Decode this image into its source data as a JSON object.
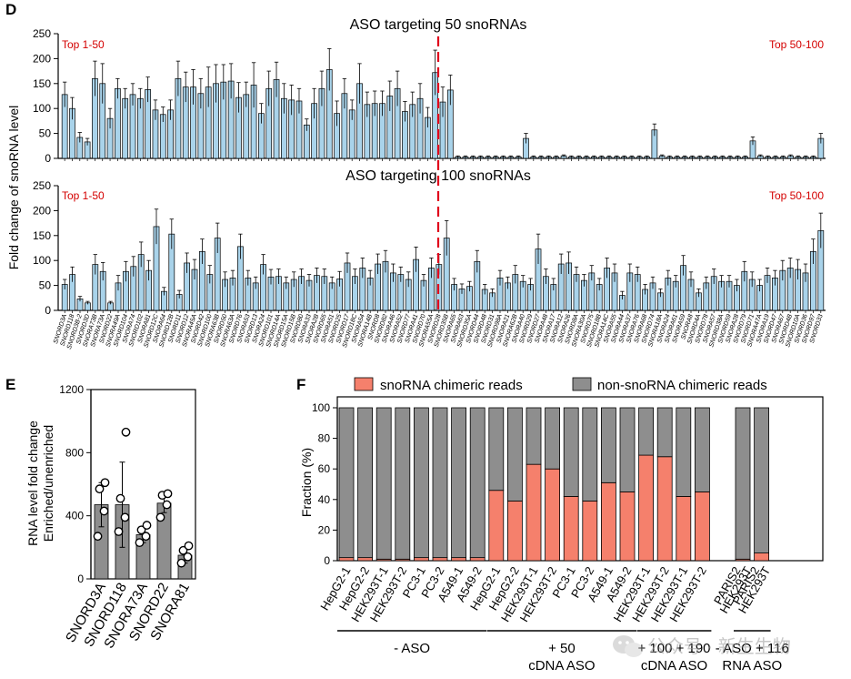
{
  "panels": {
    "D": {
      "letter": "D"
    },
    "E": {
      "letter": "E"
    },
    "F": {
      "letter": "F"
    }
  },
  "colors": {
    "bar_blue": "#a9d3ea",
    "bar_gray": "#8e8e8e",
    "salmon": "#f5806c",
    "dash_red": "#e0001b",
    "label_red": "#d40000",
    "axis": "#000000"
  },
  "watermark": {
    "text": "公众号 · 新生生物",
    "icon": "wechat-icon"
  },
  "chart_data": [
    {
      "id": "D-top",
      "type": "bar",
      "title": "ASO targeting 50 snoRNAs",
      "ylabel": "Fold change of snoRNA level",
      "ylim": [
        0,
        250
      ],
      "yticks": [
        0,
        50,
        100,
        150,
        200,
        250
      ],
      "annotations": [
        "Top 1-50",
        "Top 50-100"
      ],
      "values": [
        128,
        100,
        42,
        33,
        160,
        150,
        80,
        140,
        120,
        128,
        120,
        138,
        97,
        88,
        97,
        160,
        143,
        143,
        130,
        143,
        150,
        153,
        155,
        122,
        128,
        147,
        90,
        140,
        158,
        120,
        117,
        115,
        67,
        110,
        140,
        178,
        90,
        130,
        97,
        150,
        108,
        110,
        110,
        125,
        140,
        94,
        108,
        120,
        82,
        172,
        113,
        137,
        3,
        3,
        3,
        3,
        3,
        3,
        3,
        3,
        3,
        40,
        3,
        3,
        3,
        3,
        5,
        3,
        3,
        3,
        3,
        3,
        3,
        3,
        3,
        3,
        3,
        3,
        57,
        5,
        3,
        3,
        3,
        3,
        3,
        3,
        3,
        3,
        3,
        3,
        3,
        35,
        5,
        3,
        3,
        3,
        5,
        3,
        3,
        3,
        40
      ],
      "errors": [
        25,
        22,
        10,
        7,
        35,
        40,
        20,
        20,
        20,
        22,
        20,
        25,
        20,
        15,
        20,
        35,
        30,
        35,
        30,
        40,
        38,
        35,
        35,
        30,
        25,
        45,
        20,
        35,
        35,
        30,
        30,
        25,
        12,
        30,
        35,
        42,
        25,
        30,
        20,
        40,
        25,
        25,
        25,
        30,
        35,
        20,
        25,
        30,
        20,
        45,
        30,
        30,
        2,
        2,
        2,
        2,
        2,
        2,
        2,
        2,
        2,
        10,
        2,
        2,
        2,
        2,
        2,
        2,
        2,
        2,
        2,
        2,
        2,
        2,
        2,
        2,
        2,
        2,
        12,
        2,
        2,
        2,
        2,
        2,
        2,
        2,
        2,
        2,
        2,
        2,
        2,
        8,
        2,
        2,
        2,
        2,
        2,
        2,
        2,
        2,
        10
      ]
    },
    {
      "id": "D-bottom",
      "type": "bar",
      "title": "ASO targeting 100 snoRNAs",
      "ylim": [
        0,
        250
      ],
      "yticks": [
        0,
        50,
        100,
        150,
        200,
        250
      ],
      "annotations": [
        "Top 1-50",
        "Top 50-100"
      ],
      "categories": [
        "SNORD3A",
        "SNORD118",
        "SNORD3B-2",
        "SNORD3D",
        "SNORA73B",
        "SNORA73A",
        "SNORD22",
        "SNORA49A",
        "SNORD104",
        "SNORA74",
        "SNORD102",
        "SNORA81",
        "SNORD12C",
        "SNORA64",
        "SNORD12B",
        "SNORD11",
        "SNORD12",
        "SNORA45A",
        "SNORD42",
        "SNORD100",
        "SNORA63B",
        "SNORD50",
        "SNORA63A",
        "SNORD76",
        "SNORA53",
        "SNORD13",
        "SNORA24",
        "SNORD101",
        "SNORD14A",
        "SNORD15A",
        "SNORD15B",
        "SNORD80",
        "SNORA33",
        "SNORA2B",
        "SNORD65",
        "SNORA51",
        "SNORD25",
        "SNORD17",
        "SNORD18C",
        "SNORA54",
        "SNORA14B",
        "SNORD8",
        "SNORD82",
        "SNORA46",
        "SNORA52",
        "SNORD77",
        "SNORA41",
        "SNORD70",
        "SNORA55A",
        "SNORD28",
        "SNORD35B",
        "SNORA65",
        "SNORA63",
        "SNORD35A",
        "SNORD44",
        "SNORD48",
        "SNORD31",
        "SNORD98A",
        "SNORA21",
        "SNORA62B",
        "SNORA40",
        "SNORD29",
        "SNORD27",
        "SNORA48",
        "SNORA17",
        "SNORA12",
        "SNORA26",
        "SNORD8A",
        "SNORA30A",
        "SNORD75",
        "SNORD18B",
        "SNORA14C",
        "SNORA55",
        "SNORA44",
        "SNORA37",
        "SNORA76",
        "SNORA68",
        "SNORD74",
        "SNORA18A",
        "SNORA24",
        "SNORA61",
        "SNORA59",
        "SNORA8",
        "SNORD4A",
        "SNORD78",
        "SNORA57",
        "SNORD38A",
        "SNORD59",
        "SNORA28",
        "SNORD79",
        "SNORD71",
        "SNORA47A",
        "SNORA19",
        "SNORD47",
        "SNORA67",
        "SNORD4B",
        "SNORD10A",
        "SNORD36",
        "SNORD97",
        "SNORD33"
      ],
      "values": [
        52,
        72,
        23,
        15,
        92,
        78,
        15,
        55,
        78,
        88,
        112,
        80,
        168,
        38,
        153,
        32,
        95,
        82,
        118,
        72,
        145,
        62,
        65,
        128,
        65,
        55,
        92,
        67,
        68,
        55,
        62,
        68,
        60,
        70,
        68,
        55,
        63,
        95,
        68,
        85,
        65,
        93,
        98,
        75,
        72,
        62,
        102,
        60,
        85,
        92,
        145,
        52,
        43,
        48,
        98,
        42,
        35,
        65,
        55,
        72,
        58,
        52,
        123,
        68,
        52,
        93,
        95,
        72,
        60,
        75,
        52,
        85,
        75,
        30,
        75,
        72,
        42,
        55,
        35,
        65,
        58,
        90,
        62,
        35,
        55,
        68,
        58,
        58,
        50,
        78,
        62,
        50,
        70,
        65,
        80,
        85,
        82,
        75,
        118,
        160
      ],
      "errors": [
        10,
        15,
        5,
        3,
        20,
        18,
        3,
        15,
        20,
        20,
        25,
        20,
        35,
        8,
        30,
        8,
        20,
        20,
        25,
        18,
        30,
        15,
        15,
        25,
        15,
        12,
        20,
        15,
        15,
        12,
        15,
        15,
        12,
        15,
        15,
        12,
        15,
        20,
        15,
        20,
        15,
        20,
        22,
        18,
        15,
        15,
        25,
        12,
        20,
        20,
        35,
        12,
        10,
        10,
        22,
        10,
        8,
        15,
        12,
        18,
        12,
        12,
        30,
        15,
        12,
        20,
        22,
        15,
        12,
        15,
        12,
        20,
        18,
        8,
        18,
        15,
        10,
        12,
        8,
        15,
        12,
        20,
        15,
        8,
        12,
        15,
        12,
        12,
        12,
        20,
        15,
        12,
        15,
        15,
        20,
        20,
        20,
        18,
        25,
        35
      ]
    },
    {
      "id": "E",
      "type": "bar",
      "ylabel": "RNA level fold change\nEnriched/unenriched",
      "ylim": [
        0,
        1200
      ],
      "yticks": [
        0,
        400,
        800,
        1200
      ],
      "categories": [
        "SNORD3A",
        "SNORD118",
        "SNORA73A",
        "SNORD22",
        "SNORA81"
      ],
      "values": [
        470,
        470,
        280,
        480,
        150
      ],
      "errors": [
        140,
        270,
        50,
        60,
        50
      ],
      "points": [
        [
          270,
          430,
          570,
          610
        ],
        [
          300,
          390,
          510,
          930
        ],
        [
          230,
          270,
          310,
          340
        ],
        [
          390,
          470,
          530,
          540
        ],
        [
          100,
          140,
          180,
          210
        ]
      ]
    },
    {
      "id": "F",
      "type": "bar",
      "stacked": true,
      "ylabel": "Fraction (%)",
      "ylim": [
        0,
        100
      ],
      "yticks": [
        0,
        20,
        40,
        60,
        80,
        100
      ],
      "legend": [
        "snoRNA chimeric reads",
        "non-snoRNA chimeric reads"
      ],
      "legend_position": "top",
      "categories": [
        "HepG2-1",
        "HepG2-2",
        "HEK293T-1",
        "HEK293T-2",
        "PC3-1",
        "PC3-2",
        "A549-1",
        "A549-2",
        "HepG2-1",
        "HepG2-2",
        "HEK293T-1",
        "HEK293T-2",
        "PC3-1",
        "PC3-2",
        "A549-1",
        "A549-2",
        "HEK293T-1",
        "HEK293T-2",
        "HEK293T-1",
        "HEK293T-2",
        "PARIS2 HEK293T",
        "PARIS2 HEK293T"
      ],
      "series": [
        {
          "name": "snoRNA chimeric reads",
          "values": [
            2,
            2,
            1,
            1,
            2,
            2,
            2,
            2,
            46,
            39,
            63,
            60,
            42,
            39,
            51,
            45,
            69,
            68,
            42,
            45,
            1,
            5
          ]
        },
        {
          "name": "non-snoRNA chimeric reads",
          "values": [
            98,
            98,
            99,
            99,
            98,
            98,
            98,
            98,
            54,
            61,
            37,
            40,
            58,
            61,
            49,
            55,
            31,
            32,
            58,
            55,
            99,
            95
          ]
        }
      ],
      "groups": [
        {
          "label": "- ASO"
        },
        {
          "label": "+ 50\ncDNA ASO"
        },
        {
          "label": "+ 100 + 190\ncDNA ASO"
        },
        {
          "label": "- ASO + 116\nRNA ASO"
        }
      ]
    }
  ]
}
